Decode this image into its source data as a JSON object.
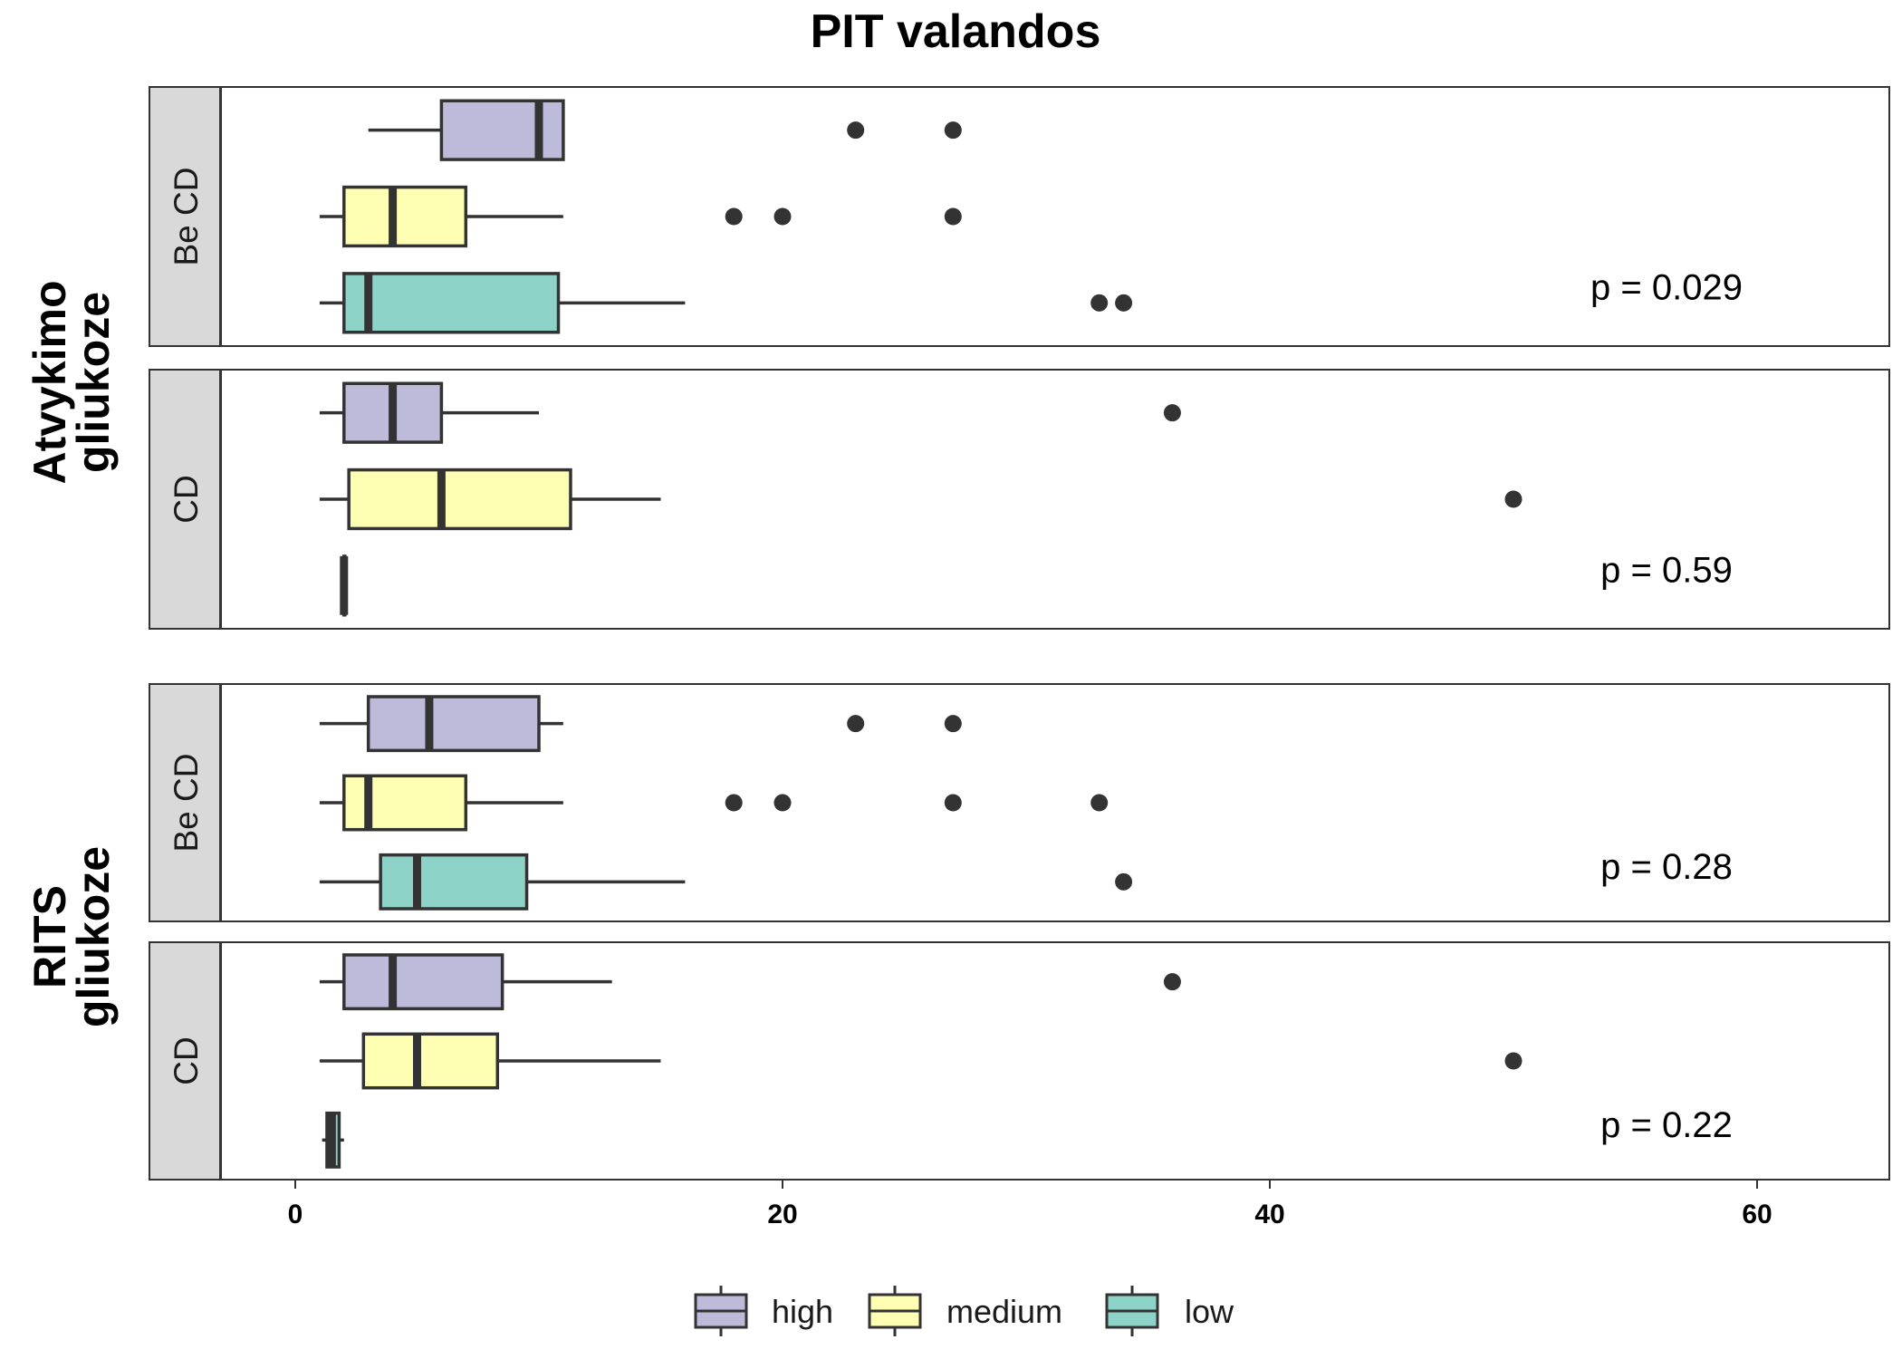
{
  "chart_data": {
    "type": "boxplot",
    "title": "PIT valandos",
    "xlabel": "",
    "ylabel": "",
    "xlim": [
      -6,
      65
    ],
    "x_ticks": [
      0,
      20,
      40,
      60
    ],
    "x_tick_labels": [
      "0",
      "20",
      "40",
      "60"
    ],
    "grid": false,
    "legend_position": "bottom",
    "legend": [
      {
        "name": "high",
        "color": "#bebada"
      },
      {
        "name": "medium",
        "color": "#ffffb3"
      },
      {
        "name": "low",
        "color": "#8dd3c7"
      }
    ],
    "groups": [
      {
        "label_lines": [
          "Atvykimo",
          "gliukoze"
        ],
        "panels": [
          {
            "strip": "Be CD",
            "pvalue": "p = 0.029",
            "boxes": [
              {
                "series": "high",
                "whisker_low": 3,
                "q1": 6,
                "median": 10,
                "q3": 11,
                "whisker_high": 11,
                "outliers": [
                  23,
                  27
                ]
              },
              {
                "series": "medium",
                "whisker_low": 1,
                "q1": 2,
                "median": 4,
                "q3": 7,
                "whisker_high": 11,
                "outliers": [
                  18,
                  20,
                  27
                ]
              },
              {
                "series": "low",
                "whisker_low": 1,
                "q1": 2,
                "median": 3,
                "q3": 10.8,
                "whisker_high": 16,
                "outliers": [
                  33,
                  34
                ]
              }
            ]
          },
          {
            "strip": "CD",
            "pvalue": "p = 0.59",
            "boxes": [
              {
                "series": "high",
                "whisker_low": 1,
                "q1": 2,
                "median": 4,
                "q3": 6,
                "whisker_high": 10,
                "outliers": [
                  36
                ]
              },
              {
                "series": "medium",
                "whisker_low": 1,
                "q1": 2.2,
                "median": 6,
                "q3": 11.3,
                "whisker_high": 15,
                "outliers": [
                  50
                ]
              },
              {
                "series": "low",
                "whisker_low": 2,
                "q1": 2,
                "median": 2,
                "q3": 2,
                "whisker_high": 2,
                "outliers": []
              }
            ]
          }
        ]
      },
      {
        "label_lines": [
          "RITS",
          "gliukoze"
        ],
        "panels": [
          {
            "strip": "Be CD",
            "pvalue": "p = 0.28",
            "boxes": [
              {
                "series": "high",
                "whisker_low": 1,
                "q1": 3,
                "median": 5.5,
                "q3": 10,
                "whisker_high": 11,
                "outliers": [
                  23,
                  27
                ]
              },
              {
                "series": "medium",
                "whisker_low": 1,
                "q1": 2,
                "median": 3,
                "q3": 7,
                "whisker_high": 11,
                "outliers": [
                  18,
                  20,
                  27,
                  33
                ]
              },
              {
                "series": "low",
                "whisker_low": 1,
                "q1": 3.5,
                "median": 5,
                "q3": 9.5,
                "whisker_high": 16,
                "outliers": [
                  34
                ]
              }
            ]
          },
          {
            "strip": "CD",
            "pvalue": "p = 0.22",
            "boxes": [
              {
                "series": "high",
                "whisker_low": 1,
                "q1": 2,
                "median": 4,
                "q3": 8.5,
                "whisker_high": 13,
                "outliers": [
                  36
                ]
              },
              {
                "series": "medium",
                "whisker_low": 1,
                "q1": 2.8,
                "median": 5,
                "q3": 8.3,
                "whisker_high": 15,
                "outliers": [
                  50
                ]
              },
              {
                "series": "low",
                "whisker_low": 1.1,
                "q1": 1.3,
                "median": 1.5,
                "q3": 1.8,
                "whisker_high": 2,
                "outliers": []
              }
            ]
          }
        ]
      }
    ]
  }
}
